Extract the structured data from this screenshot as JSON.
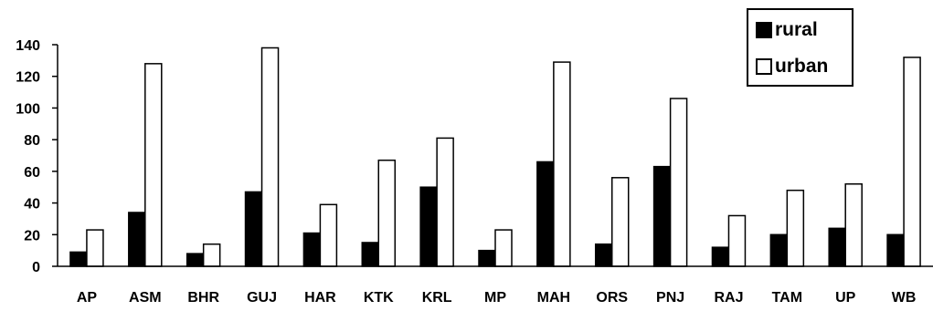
{
  "chart_data": {
    "type": "bar",
    "categories": [
      "AP",
      "ASM",
      "BHR",
      "GUJ",
      "HAR",
      "KTK",
      "KRL",
      "MP",
      "MAH",
      "ORS",
      "PNJ",
      "RAJ",
      "TAM",
      "UP",
      "WB"
    ],
    "series": [
      {
        "name": "rural",
        "color": "#000000",
        "values": [
          9,
          34,
          8,
          47,
          21,
          15,
          50,
          10,
          66,
          14,
          63,
          12,
          20,
          24,
          20
        ]
      },
      {
        "name": "urban",
        "color": "#ffffff",
        "values": [
          23,
          128,
          14,
          138,
          39,
          67,
          81,
          23,
          129,
          56,
          106,
          32,
          48,
          52,
          132
        ]
      }
    ],
    "yticks": [
      "0",
      "20",
      "40",
      "60",
      "80",
      "100",
      "120",
      "140"
    ],
    "ylim": [
      0,
      140
    ],
    "title": "",
    "xlabel": "",
    "ylabel": "",
    "grid": false,
    "legend_position": "top-right"
  }
}
